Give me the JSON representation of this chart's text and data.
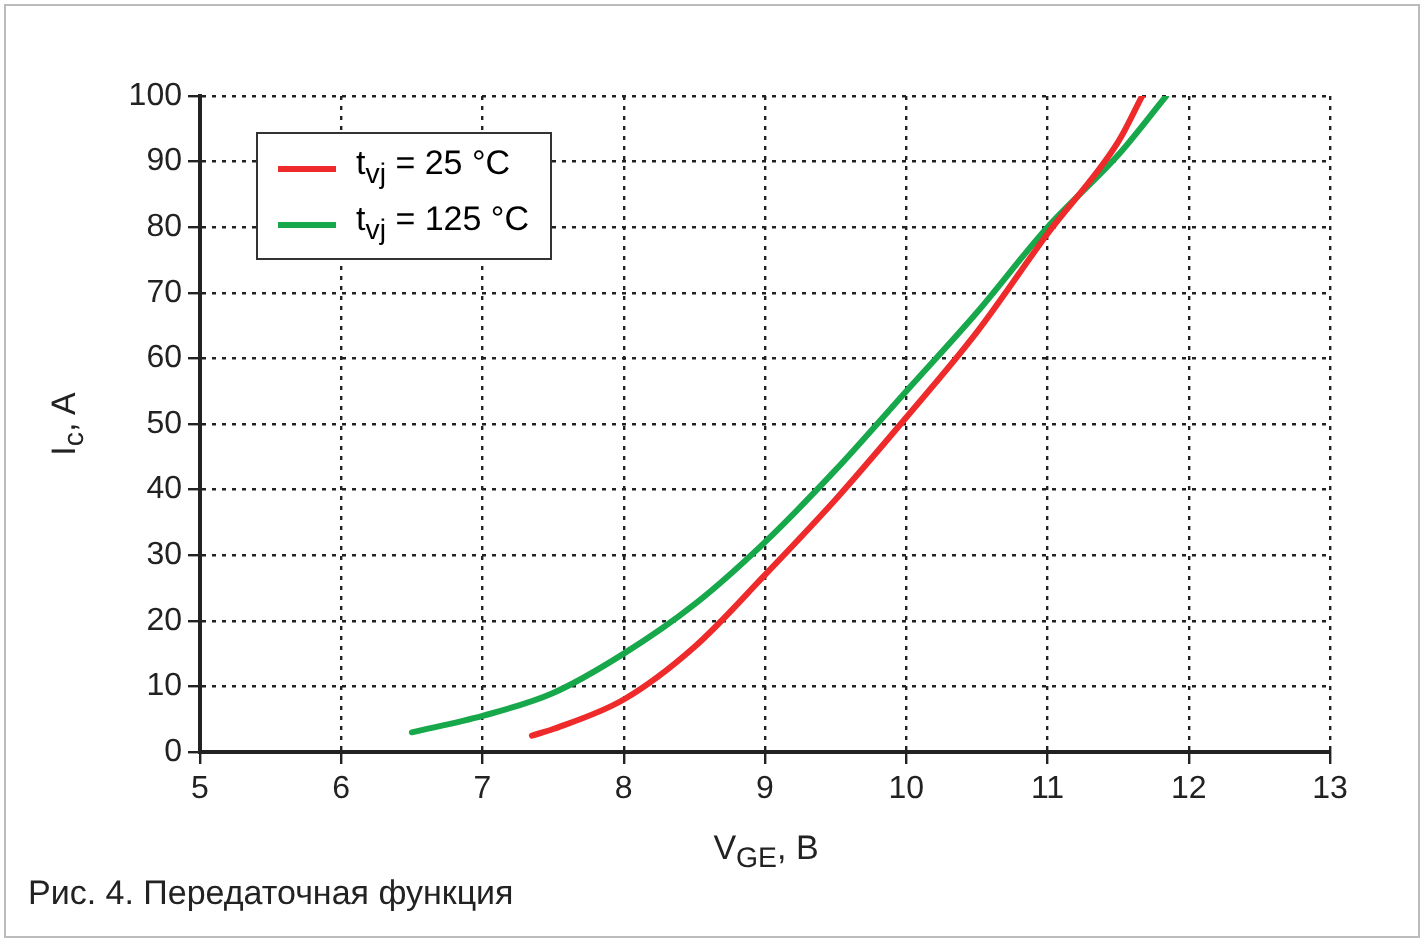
{
  "chart_data": {
    "type": "line",
    "xlabel": "V$_{GE}$, В",
    "ylabel": "I$_{c}$, A",
    "annotations": [
      "Рис. 4. Передаточная функция"
    ],
    "xlim": [
      5,
      13
    ],
    "xticks": [
      5,
      6,
      7,
      8,
      9,
      10,
      11,
      12,
      13
    ],
    "ylim": [
      0,
      100
    ],
    "yticks": [
      0,
      10,
      20,
      30,
      40,
      50,
      60,
      70,
      80,
      90,
      100
    ],
    "grid": true,
    "legend": "top left",
    "line_style": "solid",
    "marker": "none",
    "series": [
      {
        "name": "t$_{vj}$ = 25 °C",
        "color": "#ee2a2a",
        "x": [
          7.35,
          7.5,
          8,
          8.5,
          9,
          9.5,
          10,
          10.5,
          11,
          11.5,
          11.67
        ],
        "values": [
          2.5,
          3.5,
          8,
          16,
          27,
          38.5,
          51,
          64,
          79,
          93,
          100
        ]
      },
      {
        "name": "t$_{vj}$ = 125 °C",
        "color": "#16a84a",
        "x": [
          6.5,
          7,
          7.5,
          8,
          8.5,
          9,
          9.5,
          10,
          10.5,
          11,
          11.5,
          11.84
        ],
        "values": [
          3,
          5.5,
          9,
          15,
          22.5,
          32,
          43,
          55,
          67,
          80,
          91,
          100
        ]
      }
    ]
  }
}
